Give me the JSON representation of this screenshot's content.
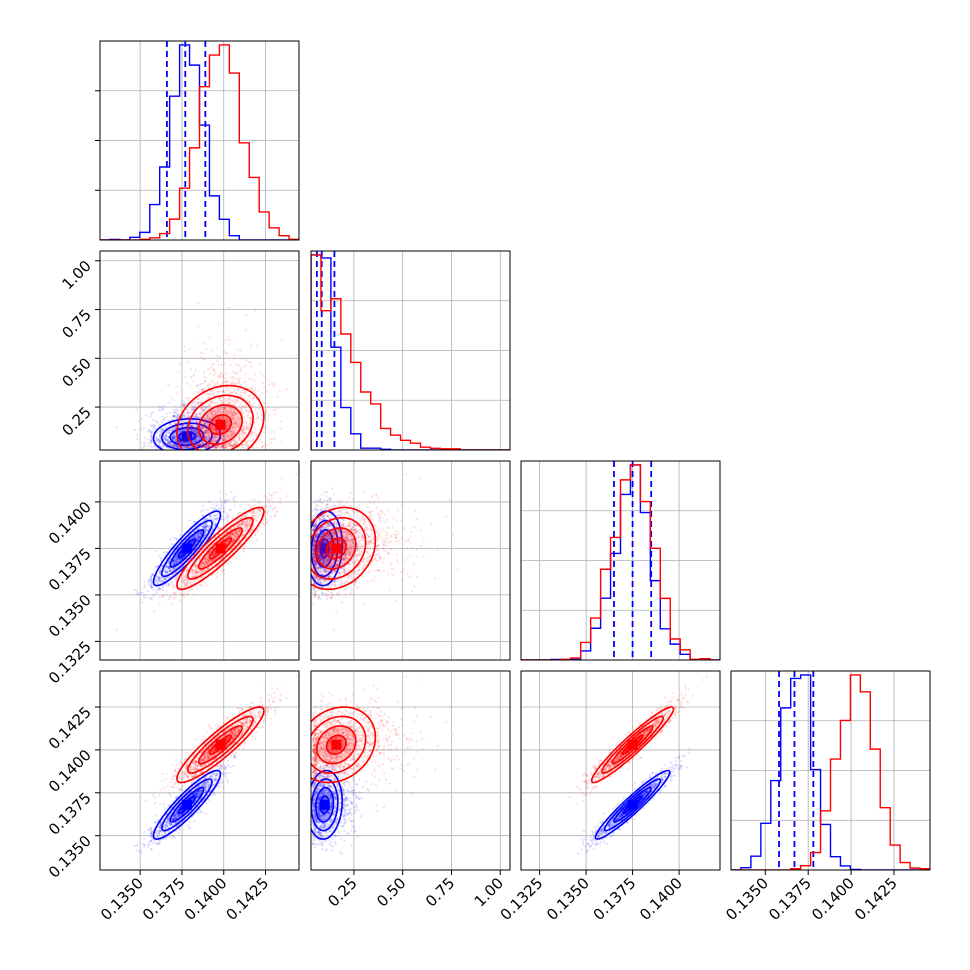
{
  "chart_data": {
    "type": "scatter",
    "subtype": "corner-plot",
    "grid": true,
    "n_params": 4,
    "params": [
      {
        "range": [
          0.1326,
          0.1445
        ],
        "ticks": [
          0.135,
          0.1375,
          0.14,
          0.1425
        ],
        "tick_labels": [
          "0.1350",
          "0.1375",
          "0.1400",
          "0.1425"
        ]
      },
      {
        "range": [
          0.03,
          1.05
        ],
        "ticks": [
          0.25,
          0.5,
          0.75,
          1.0
        ],
        "tick_labels": [
          "0.25",
          "0.50",
          "0.75",
          "1.00"
        ]
      },
      {
        "range": [
          0.1315,
          0.1422
        ],
        "ticks": [
          0.1325,
          0.135,
          0.1375,
          0.14
        ],
        "tick_labels": [
          "0.1325",
          "0.1350",
          "0.1375",
          "0.1400"
        ]
      },
      {
        "range": [
          0.133,
          0.1446
        ],
        "ticks": [
          0.135,
          0.1375,
          0.14,
          0.1425
        ],
        "tick_labels": [
          "0.1350",
          "0.1375",
          "0.1400",
          "0.1425"
        ]
      }
    ],
    "series": [
      {
        "color": "#0000ff",
        "mean": [
          0.1378,
          0.1,
          0.1375,
          0.1368
        ],
        "sd": [
          0.001,
          0.045,
          0.001,
          0.001
        ],
        "corr": [
          [
            1,
            0.1,
            0.9,
            0.9
          ],
          [
            0.1,
            1,
            0.1,
            0.1
          ],
          [
            0.9,
            0.1,
            1,
            0.95
          ],
          [
            0.9,
            0.1,
            0.95,
            1
          ]
        ],
        "quantiles": [
          [
            0.1366,
            0.1377,
            0.1389
          ],
          [
            0.06,
            0.085,
            0.15
          ],
          [
            0.1365,
            0.1375,
            0.1385
          ],
          [
            0.1358,
            0.1367,
            0.1378
          ]
        ]
      },
      {
        "color": "#ff0000",
        "mean": [
          0.1398,
          0.16,
          0.1375,
          0.1403
        ],
        "sd": [
          0.0013,
          0.1,
          0.0011,
          0.0011
        ],
        "corr": [
          [
            1,
            0.2,
            0.9,
            0.9
          ],
          [
            0.2,
            1,
            0.2,
            0.2
          ],
          [
            0.9,
            0.2,
            1,
            0.95
          ],
          [
            0.9,
            0.2,
            0.95,
            1
          ]
        ],
        "quantiles": []
      }
    ]
  }
}
